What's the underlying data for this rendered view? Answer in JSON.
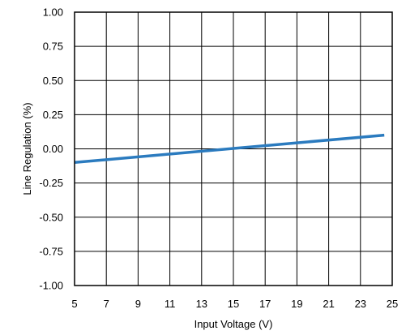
{
  "chart_data": {
    "type": "line",
    "title": "",
    "xlabel": "Input Voltage (V)",
    "ylabel": "Line Regulation (%)",
    "xlim": [
      5,
      25
    ],
    "ylim": [
      -1.0,
      1.0
    ],
    "x_ticks": [
      5,
      7,
      9,
      11,
      13,
      15,
      17,
      19,
      21,
      23,
      25
    ],
    "x_tick_labels": [
      "5",
      "7",
      "9",
      "11",
      "13",
      "15",
      "17",
      "19",
      "21",
      "23",
      "25"
    ],
    "y_ticks": [
      1.0,
      0.75,
      0.5,
      0.25,
      0.0,
      -0.25,
      -0.5,
      -0.75,
      -1.0
    ],
    "y_tick_labels": [
      "1.00",
      "0.75",
      "0.50",
      "0.25",
      "0.00",
      "-0.25",
      "-0.50",
      "-0.75",
      "-1.00"
    ],
    "grid": true,
    "legend": "none",
    "series": [
      {
        "color": "#2b7bbf",
        "x": [
          5,
          24.5
        ],
        "y": [
          -0.1,
          0.1
        ]
      }
    ]
  }
}
